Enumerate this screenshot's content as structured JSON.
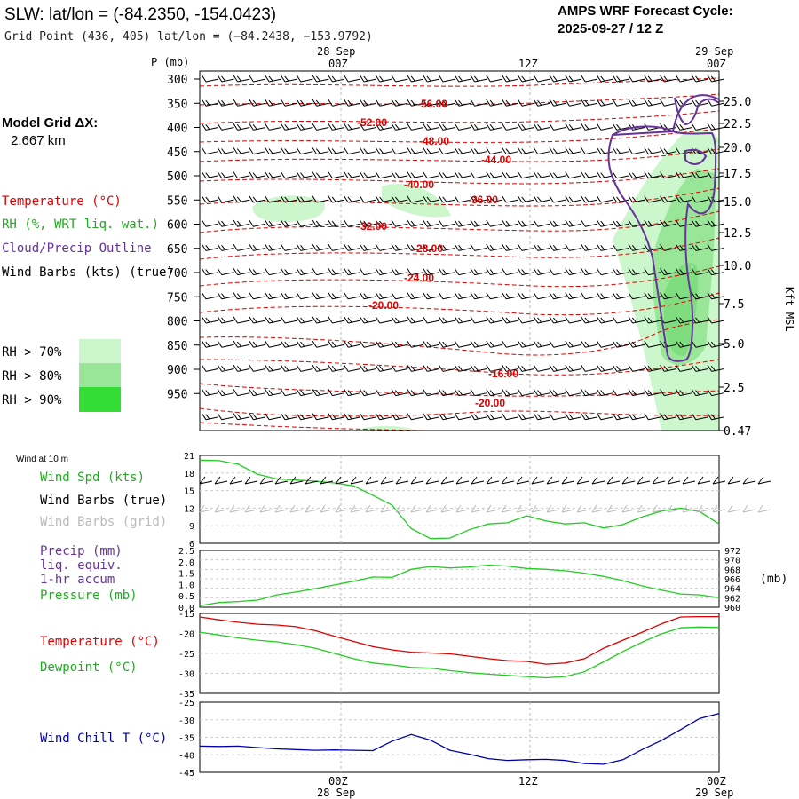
{
  "header": {
    "station_title": "SLW:  lat/lon = (-84.2350, -154.0423)",
    "grid_point": "Grid Point (436, 405) lat/lon = (−84.2438, −153.9792)",
    "forecast_label": "AMPS WRF Forecast Cycle:",
    "forecast_cycle": "2025-09-27 / 12  Z"
  },
  "left_panel": {
    "model_grid_label": "Model Grid ΔX:",
    "model_grid_value": "2.667 km",
    "legend_temperature": "Temperature (°C)",
    "legend_rh": "RH (%, WRT liq. wat.)",
    "legend_cloud": "Cloud/Precip Outline",
    "legend_wind": "Wind Barbs (kts) (true)",
    "rh_legend": [
      {
        "label": "RH > 70%",
        "color": "#ccf7cc"
      },
      {
        "label": "RH > 80%",
        "color": "#99e699"
      },
      {
        "label": "RH > 90%",
        "color": "#33dd33"
      }
    ]
  },
  "colors": {
    "temperature": "#dd0000",
    "rh_green": "#22cc22",
    "cloud_outline": "#663399",
    "wind_chill": "#0000aa",
    "barb_grid": "#bbbbbb"
  },
  "time_axis": {
    "top_date_left": "28 Sep",
    "top_date_right": "29 Sep",
    "bottom_date_left": "28 Sep",
    "bottom_date_right": "29 Sep",
    "ticks": [
      "00Z",
      "12Z",
      "00Z"
    ]
  },
  "sounding": {
    "p_label": "P (mb)",
    "right_label": "Kft MSL",
    "pressure_levels": [
      "300",
      "350",
      "400",
      "450",
      "500",
      "550",
      "600",
      "650",
      "700",
      "750",
      "800",
      "850",
      "900",
      "950"
    ],
    "height_labels": [
      "25.0",
      "22.5",
      "20.0",
      "17.5",
      "15.0",
      "12.5",
      "10.0",
      "7.5",
      "5.0",
      "2.5",
      "0.47"
    ],
    "temp_labels": [
      "-56.00",
      "-52.00",
      "-48.00",
      "-44.00",
      "-40.00",
      "-36.00",
      "-32.00",
      "-28.00",
      "-24.00",
      "-20.00",
      "-16.00",
      "-20.00"
    ]
  },
  "wind10m": {
    "header": "Wind at 10 m",
    "label_speed": "Wind Spd (kts)",
    "label_barbs_true": "Wind Barbs (true)",
    "label_barbs_grid": "Wind Barbs (grid)",
    "yticks": [
      "21",
      "18",
      "15",
      "12",
      "9",
      "6"
    ]
  },
  "precip": {
    "label_precip": "Precip (mm)",
    "label_liq": "liq. equiv.",
    "label_accum": "1-hr accum",
    "label_pressure": "Pressure (mb)",
    "unit_right": "(mb)",
    "yticks_left": [
      "2.5",
      "2.0",
      "1.5",
      "1.0",
      "0.5",
      "0.0"
    ],
    "yticks_right": [
      "972",
      "970",
      "968",
      "966",
      "964",
      "962",
      "960"
    ]
  },
  "temperature": {
    "label_temp": "Temperature (°C)",
    "label_dew": "Dewpoint (°C)",
    "yticks": [
      "-15",
      "-20",
      "-25",
      "-30",
      "-35"
    ]
  },
  "windchill": {
    "label": "Wind Chill T (°C)",
    "yticks": [
      "-25",
      "-30",
      "-35",
      "-40",
      "-45"
    ]
  },
  "chart_data": [
    {
      "type": "line",
      "title": "Wind Spd (kts) at 10 m",
      "x": [
        0,
        1,
        2,
        3,
        4,
        5,
        6,
        7,
        8,
        9,
        10,
        11,
        12,
        13,
        14,
        15,
        16,
        17,
        18,
        19,
        20,
        21,
        22,
        23,
        24,
        25,
        26,
        27
      ],
      "series": [
        {
          "name": "Wind Spd (kts)",
          "values": [
            20.2,
            20.1,
            19.5,
            17.8,
            17.0,
            16.8,
            16.6,
            16.3,
            15.8,
            14.2,
            12.5,
            8.5,
            6.8,
            6.9,
            8.3,
            9.3,
            9.5,
            10.7,
            9.8,
            9.3,
            9.5,
            8.6,
            9.2,
            10.5,
            11.5,
            12.0,
            11.4,
            9.3
          ]
        }
      ],
      "ylim": [
        6,
        21
      ]
    },
    {
      "type": "line",
      "title": "Pressure (mb)",
      "x": [
        0,
        1,
        2,
        3,
        4,
        5,
        6,
        7,
        8,
        9,
        10,
        11,
        12,
        13,
        14,
        15,
        16,
        17,
        18,
        19,
        20,
        21,
        22,
        23,
        24,
        25,
        26,
        27
      ],
      "series": [
        {
          "name": "Pressure (mb)",
          "values": [
            960.3,
            961.0,
            961.2,
            961.5,
            962.6,
            963.2,
            963.9,
            964.7,
            965.5,
            966.4,
            966.3,
            968.0,
            968.6,
            968.3,
            968.5,
            968.9,
            968.7,
            968.2,
            968.0,
            967.7,
            967.2,
            966.5,
            965.6,
            964.5,
            963.6,
            962.8,
            962.6,
            962.0
          ]
        }
      ],
      "ylim": [
        960,
        972
      ]
    },
    {
      "type": "line",
      "title": "Temperature and Dewpoint (°C)",
      "x": [
        0,
        1,
        2,
        3,
        4,
        5,
        6,
        7,
        8,
        9,
        10,
        11,
        12,
        13,
        14,
        15,
        16,
        17,
        18,
        19,
        20,
        21,
        22,
        23,
        24,
        25,
        26,
        27
      ],
      "series": [
        {
          "name": "Temperature (°C)",
          "values": [
            -15.9,
            -16.6,
            -17.2,
            -17.7,
            -17.9,
            -18.3,
            -19.3,
            -20.7,
            -22.0,
            -23.3,
            -24.1,
            -24.7,
            -24.9,
            -25.1,
            -25.7,
            -26.3,
            -26.8,
            -27.0,
            -27.7,
            -27.4,
            -26.3,
            -23.7,
            -21.7,
            -19.7,
            -17.6,
            -15.9,
            -15.8,
            -15.8
          ],
          "color": "#dd0000"
        },
        {
          "name": "Dewpoint (°C)",
          "values": [
            -19.7,
            -20.4,
            -21.1,
            -21.7,
            -22.1,
            -22.8,
            -23.7,
            -25.0,
            -26.3,
            -27.4,
            -27.9,
            -28.5,
            -28.7,
            -29.3,
            -29.8,
            -30.2,
            -30.5,
            -30.8,
            -31.1,
            -30.8,
            -29.6,
            -27.1,
            -24.5,
            -22.2,
            -20.1,
            -18.6,
            -18.4,
            -18.5
          ],
          "color": "#22cc22"
        }
      ],
      "ylim": [
        -35,
        -15
      ]
    },
    {
      "type": "line",
      "title": "Wind Chill T (°C)",
      "x": [
        0,
        1,
        2,
        3,
        4,
        5,
        6,
        7,
        8,
        9,
        10,
        11,
        12,
        13,
        14,
        15,
        16,
        17,
        18,
        19,
        20,
        21,
        22,
        23,
        24,
        25,
        26,
        27
      ],
      "series": [
        {
          "name": "Wind Chill T (°C)",
          "values": [
            -37.5,
            -37.6,
            -37.5,
            -37.9,
            -38.3,
            -38.5,
            -38.7,
            -38.6,
            -38.7,
            -38.8,
            -36.1,
            -34.2,
            -35.8,
            -38.7,
            -39.8,
            -41.1,
            -41.6,
            -41.4,
            -41.3,
            -41.6,
            -42.5,
            -42.7,
            -41.4,
            -38.5,
            -35.9,
            -32.8,
            -29.6,
            -28.2
          ],
          "color": "#0000aa"
        }
      ],
      "ylim": [
        -45,
        -25
      ]
    }
  ]
}
